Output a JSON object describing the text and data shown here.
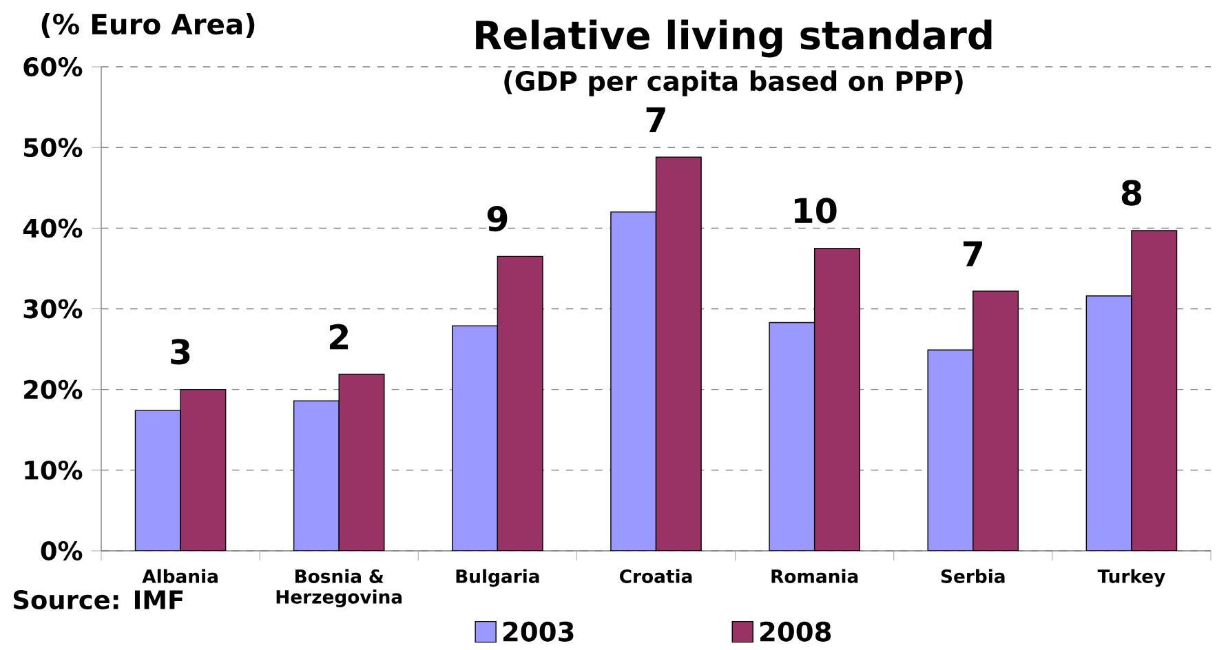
{
  "chart_data": {
    "type": "bar",
    "title": "Relative living standard",
    "subtitle": "(GDP per capita based on PPP)",
    "ylabel": "(% Euro Area)",
    "categories": [
      "Albania",
      "Bosnia & Herzegovina",
      "Bulgaria",
      "Croatia",
      "Romania",
      "Serbia",
      "Turkey"
    ],
    "series": [
      {
        "name": "2003",
        "color": "#9999ff",
        "values": [
          17.4,
          18.6,
          27.9,
          42.0,
          28.3,
          24.9,
          31.6
        ]
      },
      {
        "name": "2008",
        "color": "#993366",
        "values": [
          20.0,
          21.9,
          36.5,
          48.8,
          37.5,
          32.2,
          39.7
        ]
      }
    ],
    "ylim": [
      0,
      60
    ],
    "yticks": [
      {
        "value": 0,
        "label": "0%"
      },
      {
        "value": 10,
        "label": "10%"
      },
      {
        "value": 20,
        "label": "20%"
      },
      {
        "value": 30,
        "label": "30%"
      },
      {
        "value": 40,
        "label": "40%"
      },
      {
        "value": 50,
        "label": "50%"
      },
      {
        "value": 60,
        "label": "60%"
      }
    ],
    "grid": "y",
    "legend": "bottom",
    "annotations": [
      {
        "text": "3",
        "x": "Albania",
        "y": 20.0
      },
      {
        "text": "2",
        "x": "Bosnia & Herzegovina",
        "y": 21.9
      },
      {
        "text": "9",
        "x": "Bulgaria",
        "y": 36.5
      },
      {
        "text": "7",
        "x": "Croatia",
        "y": 48.8
      },
      {
        "text": "10",
        "x": "Romania",
        "y": 37.5
      },
      {
        "text": "7",
        "x": "Serbia",
        "y": 32.2
      },
      {
        "text": "8",
        "x": "Turkey",
        "y": 39.7
      },
      "Source: IMF"
    ]
  }
}
